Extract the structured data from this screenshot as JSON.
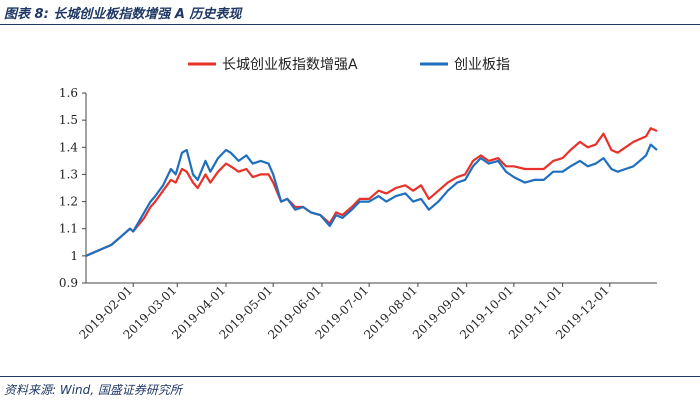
{
  "figure": {
    "title": "图表 8:  长城创业板指数增强 A 历史表现",
    "source": "资料来源:  Wind,  国盛证券研究所"
  },
  "chart_data": {
    "type": "line",
    "legend_position": "top-center",
    "grid": false,
    "ylim": [
      0.9,
      1.6
    ],
    "yticks": [
      "0.9",
      "1",
      "1.1",
      "1.2",
      "1.3",
      "1.4",
      "1.5",
      "1.6"
    ],
    "x_range": [
      "2019-01-02",
      "2019-12-31"
    ],
    "xticks": [
      "2019-02-01",
      "2019-03-01",
      "2019-04-01",
      "2019-05-01",
      "2019-06-01",
      "2019-07-01",
      "2019-08-01",
      "2019-09-01",
      "2019-10-01",
      "2019-11-01",
      "2019-12-01"
    ],
    "series": [
      {
        "name": "长城创业板指数增强A",
        "color": "#e8312a",
        "points": [
          [
            "2019-01-02",
            1.0
          ],
          [
            "2019-01-10",
            1.02
          ],
          [
            "2019-01-18",
            1.04
          ],
          [
            "2019-01-24",
            1.07
          ],
          [
            "2019-01-30",
            1.1
          ],
          [
            "2019-02-01",
            1.09
          ],
          [
            "2019-02-08",
            1.14
          ],
          [
            "2019-02-12",
            1.18
          ],
          [
            "2019-02-15",
            1.2
          ],
          [
            "2019-02-20",
            1.24
          ],
          [
            "2019-02-25",
            1.28
          ],
          [
            "2019-02-28",
            1.27
          ],
          [
            "2019-03-04",
            1.32
          ],
          [
            "2019-03-07",
            1.31
          ],
          [
            "2019-03-11",
            1.27
          ],
          [
            "2019-03-14",
            1.25
          ],
          [
            "2019-03-19",
            1.3
          ],
          [
            "2019-03-22",
            1.27
          ],
          [
            "2019-03-27",
            1.31
          ],
          [
            "2019-04-01",
            1.34
          ],
          [
            "2019-04-04",
            1.33
          ],
          [
            "2019-04-09",
            1.31
          ],
          [
            "2019-04-14",
            1.32
          ],
          [
            "2019-04-18",
            1.29
          ],
          [
            "2019-04-23",
            1.3
          ],
          [
            "2019-04-28",
            1.3
          ],
          [
            "2019-05-01",
            1.27
          ],
          [
            "2019-05-06",
            1.2
          ],
          [
            "2019-05-10",
            1.21
          ],
          [
            "2019-05-15",
            1.18
          ],
          [
            "2019-05-20",
            1.18
          ],
          [
            "2019-05-25",
            1.16
          ],
          [
            "2019-05-31",
            1.15
          ],
          [
            "2019-06-06",
            1.12
          ],
          [
            "2019-06-10",
            1.16
          ],
          [
            "2019-06-14",
            1.15
          ],
          [
            "2019-06-20",
            1.18
          ],
          [
            "2019-06-25",
            1.21
          ],
          [
            "2019-07-01",
            1.21
          ],
          [
            "2019-07-07",
            1.24
          ],
          [
            "2019-07-12",
            1.23
          ],
          [
            "2019-07-18",
            1.25
          ],
          [
            "2019-07-24",
            1.26
          ],
          [
            "2019-07-29",
            1.24
          ],
          [
            "2019-08-03",
            1.26
          ],
          [
            "2019-08-08",
            1.21
          ],
          [
            "2019-08-14",
            1.24
          ],
          [
            "2019-08-20",
            1.27
          ],
          [
            "2019-08-26",
            1.29
          ],
          [
            "2019-08-31",
            1.3
          ],
          [
            "2019-09-05",
            1.35
          ],
          [
            "2019-09-10",
            1.37
          ],
          [
            "2019-09-15",
            1.35
          ],
          [
            "2019-09-21",
            1.36
          ],
          [
            "2019-09-26",
            1.33
          ],
          [
            "2019-10-01",
            1.33
          ],
          [
            "2019-10-08",
            1.32
          ],
          [
            "2019-10-14",
            1.32
          ],
          [
            "2019-10-20",
            1.32
          ],
          [
            "2019-10-26",
            1.35
          ],
          [
            "2019-11-01",
            1.36
          ],
          [
            "2019-11-06",
            1.39
          ],
          [
            "2019-11-12",
            1.42
          ],
          [
            "2019-11-17",
            1.4
          ],
          [
            "2019-11-22",
            1.41
          ],
          [
            "2019-11-27",
            1.45
          ],
          [
            "2019-12-02",
            1.39
          ],
          [
            "2019-12-06",
            1.38
          ],
          [
            "2019-12-11",
            1.4
          ],
          [
            "2019-12-16",
            1.42
          ],
          [
            "2019-12-20",
            1.43
          ],
          [
            "2019-12-24",
            1.44
          ],
          [
            "2019-12-27",
            1.47
          ],
          [
            "2019-12-31",
            1.46
          ]
        ]
      },
      {
        "name": "创业板指",
        "color": "#1f6fbf",
        "points": [
          [
            "2019-01-02",
            1.0
          ],
          [
            "2019-01-10",
            1.02
          ],
          [
            "2019-01-18",
            1.04
          ],
          [
            "2019-01-24",
            1.07
          ],
          [
            "2019-01-30",
            1.1
          ],
          [
            "2019-02-01",
            1.09
          ],
          [
            "2019-02-08",
            1.16
          ],
          [
            "2019-02-12",
            1.2
          ],
          [
            "2019-02-15",
            1.22
          ],
          [
            "2019-02-20",
            1.26
          ],
          [
            "2019-02-25",
            1.32
          ],
          [
            "2019-02-28",
            1.3
          ],
          [
            "2019-03-04",
            1.38
          ],
          [
            "2019-03-07",
            1.39
          ],
          [
            "2019-03-11",
            1.3
          ],
          [
            "2019-03-14",
            1.28
          ],
          [
            "2019-03-19",
            1.35
          ],
          [
            "2019-03-22",
            1.31
          ],
          [
            "2019-03-27",
            1.36
          ],
          [
            "2019-04-01",
            1.39
          ],
          [
            "2019-04-04",
            1.38
          ],
          [
            "2019-04-09",
            1.35
          ],
          [
            "2019-04-14",
            1.37
          ],
          [
            "2019-04-18",
            1.34
          ],
          [
            "2019-04-23",
            1.35
          ],
          [
            "2019-04-28",
            1.34
          ],
          [
            "2019-05-01",
            1.3
          ],
          [
            "2019-05-06",
            1.2
          ],
          [
            "2019-05-10",
            1.21
          ],
          [
            "2019-05-15",
            1.17
          ],
          [
            "2019-05-20",
            1.18
          ],
          [
            "2019-05-25",
            1.16
          ],
          [
            "2019-05-31",
            1.15
          ],
          [
            "2019-06-06",
            1.11
          ],
          [
            "2019-06-10",
            1.15
          ],
          [
            "2019-06-14",
            1.14
          ],
          [
            "2019-06-20",
            1.17
          ],
          [
            "2019-06-25",
            1.2
          ],
          [
            "2019-07-01",
            1.2
          ],
          [
            "2019-07-07",
            1.22
          ],
          [
            "2019-07-12",
            1.2
          ],
          [
            "2019-07-18",
            1.22
          ],
          [
            "2019-07-24",
            1.23
          ],
          [
            "2019-07-29",
            1.2
          ],
          [
            "2019-08-03",
            1.21
          ],
          [
            "2019-08-08",
            1.17
          ],
          [
            "2019-08-14",
            1.2
          ],
          [
            "2019-08-20",
            1.24
          ],
          [
            "2019-08-26",
            1.27
          ],
          [
            "2019-08-31",
            1.28
          ],
          [
            "2019-09-05",
            1.33
          ],
          [
            "2019-09-10",
            1.36
          ],
          [
            "2019-09-15",
            1.34
          ],
          [
            "2019-09-21",
            1.35
          ],
          [
            "2019-09-26",
            1.31
          ],
          [
            "2019-10-01",
            1.29
          ],
          [
            "2019-10-08",
            1.27
          ],
          [
            "2019-10-14",
            1.28
          ],
          [
            "2019-10-20",
            1.28
          ],
          [
            "2019-10-26",
            1.31
          ],
          [
            "2019-11-01",
            1.31
          ],
          [
            "2019-11-06",
            1.33
          ],
          [
            "2019-11-12",
            1.35
          ],
          [
            "2019-11-17",
            1.33
          ],
          [
            "2019-11-22",
            1.34
          ],
          [
            "2019-11-27",
            1.36
          ],
          [
            "2019-12-02",
            1.32
          ],
          [
            "2019-12-06",
            1.31
          ],
          [
            "2019-12-11",
            1.32
          ],
          [
            "2019-12-16",
            1.33
          ],
          [
            "2019-12-20",
            1.35
          ],
          [
            "2019-12-24",
            1.37
          ],
          [
            "2019-12-27",
            1.41
          ],
          [
            "2019-12-31",
            1.39
          ]
        ]
      }
    ]
  }
}
